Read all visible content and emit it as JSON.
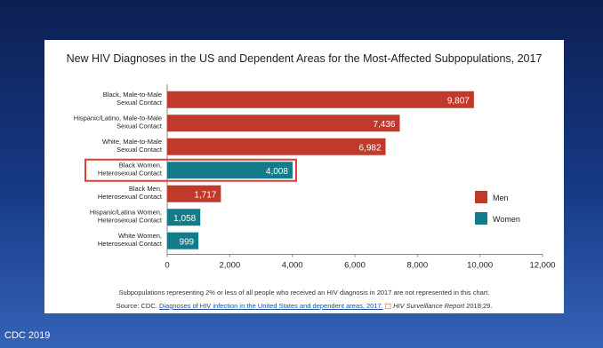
{
  "colors": {
    "men": "#c0392b",
    "women": "#137b8a",
    "highlight": "#e03b35"
  },
  "chart_data": {
    "type": "bar",
    "orientation": "horizontal",
    "title": "New HIV Diagnoses in the US and Dependent Areas for the Most-Affected Subpopulations, 2017",
    "categories": [
      [
        "Black, Male-to-Male",
        "Sexual Contact"
      ],
      [
        "Hispanic/Latino, Male-to-Male",
        "Sexual Contact"
      ],
      [
        "White, Male-to-Male",
        "Sexual Contact"
      ],
      [
        "Black Women,",
        "Heterosexual Contact"
      ],
      [
        "Black Men,",
        "Heterosexual Contact"
      ],
      [
        "Hispanic/Latina Women,",
        "Heterosexual Contact"
      ],
      [
        "White Women,",
        "Heterosexual Contact"
      ]
    ],
    "values": [
      9807,
      7436,
      6982,
      4008,
      1717,
      1058,
      999
    ],
    "value_labels": [
      "9,807",
      "7,436",
      "6,982",
      "4,008",
      "1,717",
      "1,058",
      "999"
    ],
    "groups": [
      "Men",
      "Men",
      "Men",
      "Women",
      "Men",
      "Women",
      "Women"
    ],
    "highlighted_index": 3,
    "xlim": [
      0,
      12000
    ],
    "xticks": [
      0,
      2000,
      4000,
      6000,
      8000,
      10000,
      12000
    ],
    "xtick_labels": [
      "0",
      "2,000",
      "4,000",
      "6,000",
      "8,000",
      "10,000",
      "12,000"
    ],
    "legend": [
      {
        "name": "Men",
        "color": "#c0392b"
      },
      {
        "name": "Women",
        "color": "#137b8a"
      }
    ],
    "legend_position": "right"
  },
  "footnote": "Subpopulations representing 2% or less of all people who received an HIV diagnosis in 2017 are not represented in this chart.",
  "source": {
    "prefix": "Source: CDC.",
    "link_text": "Diagnoses of HIV infection in the United States and dependent areas, 2017.",
    "pdf_glyph": "⬚",
    "report_title": "HIV Surveillance Report",
    "suffix": "2018;29."
  },
  "credit": "CDC 2019"
}
